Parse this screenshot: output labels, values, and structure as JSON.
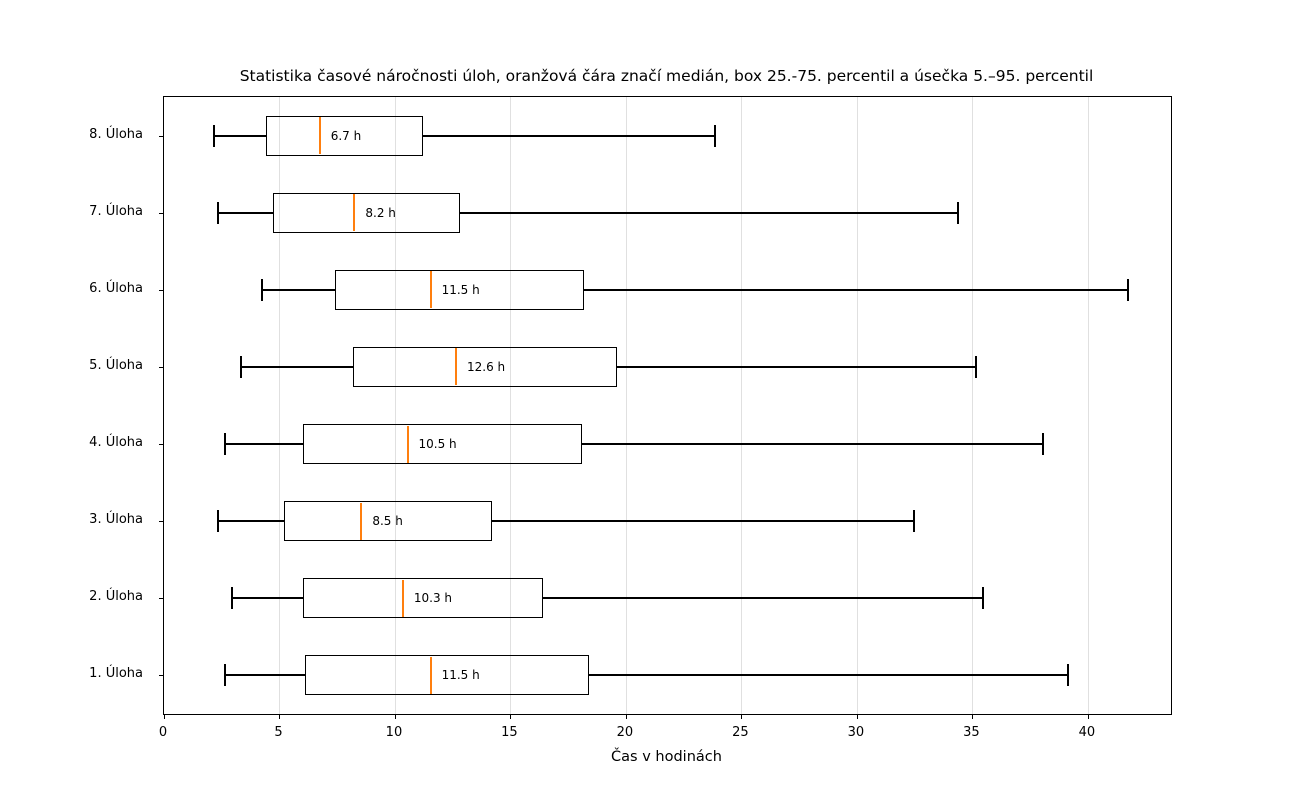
{
  "chart_data": {
    "type": "boxplot",
    "orientation": "horizontal",
    "title": "Statistika časové náročnosti úloh, oranžová čára značí medián, box 25.-75. percentil a úsečka 5.–95. percentil",
    "xlabel": "Čas v hodinách",
    "xlim": [
      0,
      43.6
    ],
    "xticks": [
      0,
      5,
      10,
      15,
      20,
      25,
      30,
      35,
      40
    ],
    "grid": "vertical-only",
    "legend": "none",
    "colors": {
      "median": "#ff7f0e",
      "box_edge": "#000000",
      "whisker": "#000000",
      "grid": "#e0e0e0",
      "background": "#ffffff"
    },
    "whisker_definition": "5th to 95th percentile",
    "box_definition": "25th to 75th percentile",
    "categories_bottom_to_top": [
      "1. Úloha",
      "2. Úloha",
      "3. Úloha",
      "4. Úloha",
      "5. Úloha",
      "6. Úloha",
      "7. Úloha",
      "8. Úloha"
    ],
    "series": [
      {
        "label": "1. Úloha",
        "whisker_low": 2.6,
        "q1": 6.1,
        "median": 11.5,
        "q3": 18.4,
        "whisker_high": 39.2,
        "median_label": "11.5 h"
      },
      {
        "label": "2. Úloha",
        "whisker_low": 2.9,
        "q1": 6.0,
        "median": 10.3,
        "q3": 16.4,
        "whisker_high": 35.5,
        "median_label": "10.3 h"
      },
      {
        "label": "3. Úloha",
        "whisker_low": 2.3,
        "q1": 5.2,
        "median": 8.5,
        "q3": 14.2,
        "whisker_high": 32.5,
        "median_label": "8.5 h"
      },
      {
        "label": "4. Úloha",
        "whisker_low": 2.6,
        "q1": 6.0,
        "median": 10.5,
        "q3": 18.1,
        "whisker_high": 38.1,
        "median_label": "10.5 h"
      },
      {
        "label": "5. Úloha",
        "whisker_low": 3.3,
        "q1": 8.2,
        "median": 12.6,
        "q3": 19.6,
        "whisker_high": 35.2,
        "median_label": "12.6 h"
      },
      {
        "label": "6. Úloha",
        "whisker_low": 4.2,
        "q1": 7.4,
        "median": 11.5,
        "q3": 18.2,
        "whisker_high": 41.8,
        "median_label": "11.5 h"
      },
      {
        "label": "7. Úloha",
        "whisker_low": 2.3,
        "q1": 4.7,
        "median": 8.2,
        "q3": 12.8,
        "whisker_high": 34.4,
        "median_label": "8.2 h"
      },
      {
        "label": "8. Úloha",
        "whisker_low": 2.1,
        "q1": 4.4,
        "median": 6.7,
        "q3": 11.2,
        "whisker_high": 23.9,
        "median_label": "6.7 h"
      }
    ]
  }
}
